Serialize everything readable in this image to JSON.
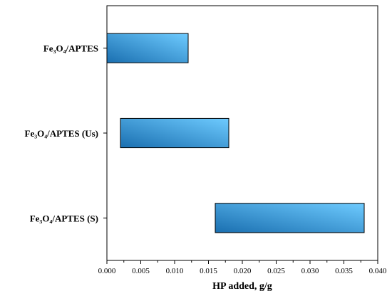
{
  "chart_data": {
    "type": "bar",
    "orientation": "horizontal",
    "floating": true,
    "categories": [
      "Fe₃O₄/APTES",
      "Fe₃O₄/APTES (Us)",
      "Fe₃O₄/APTES (S)"
    ],
    "ranges": [
      [
        0.0,
        0.012
      ],
      [
        0.002,
        0.018
      ],
      [
        0.016,
        0.038
      ]
    ],
    "xlabel": "HP added, g/g",
    "ylabel": "",
    "xlim": [
      0.0,
      0.04
    ],
    "xticks": [
      "0.000",
      "0.005",
      "0.010",
      "0.015",
      "0.020",
      "0.025",
      "0.030",
      "0.035",
      "0.040"
    ],
    "grid": false,
    "legend": "none",
    "colors": {
      "bar_dark": "#1a6fb0",
      "bar_light": "#6ecbff",
      "axis": "#000000"
    }
  }
}
